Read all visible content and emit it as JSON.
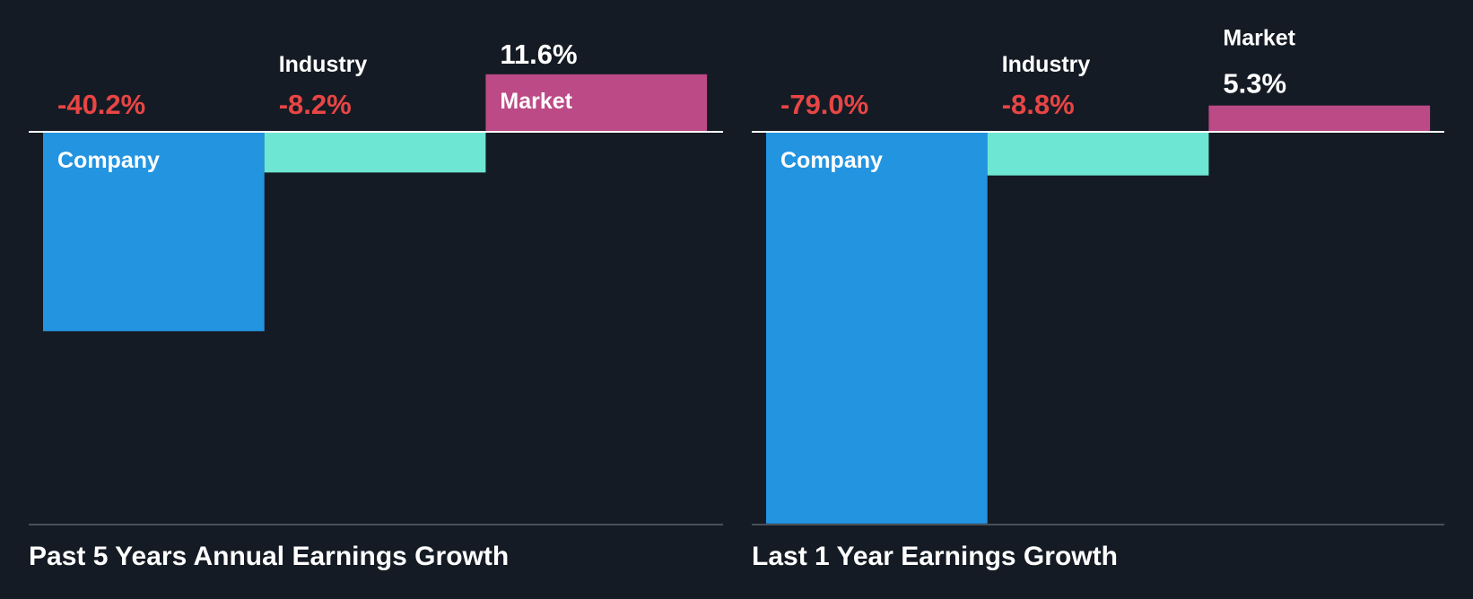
{
  "colors": {
    "background": "#151b24",
    "company": "#2394e0",
    "industry": "#6ee6d4",
    "market": "#bc4a86",
    "negative_text": "#e84545",
    "positive_text": "#ffffff"
  },
  "chart_data": [
    {
      "type": "bar",
      "title": "Past 5 Years Annual Earnings Growth",
      "categories": [
        "Company",
        "Industry",
        "Market"
      ],
      "values": [
        -40.2,
        -8.2,
        11.6
      ],
      "value_labels": [
        "-40.2%",
        "-8.2%",
        "11.6%"
      ],
      "unit": "%",
      "ylim": [
        -79.0,
        11.6
      ]
    },
    {
      "type": "bar",
      "title": "Last 1 Year Earnings Growth",
      "categories": [
        "Company",
        "Industry",
        "Market"
      ],
      "values": [
        -79.0,
        -8.8,
        5.3
      ],
      "value_labels": [
        "-79.0%",
        "-8.8%",
        "5.3%"
      ],
      "unit": "%",
      "ylim": [
        -79.0,
        11.6
      ]
    }
  ]
}
